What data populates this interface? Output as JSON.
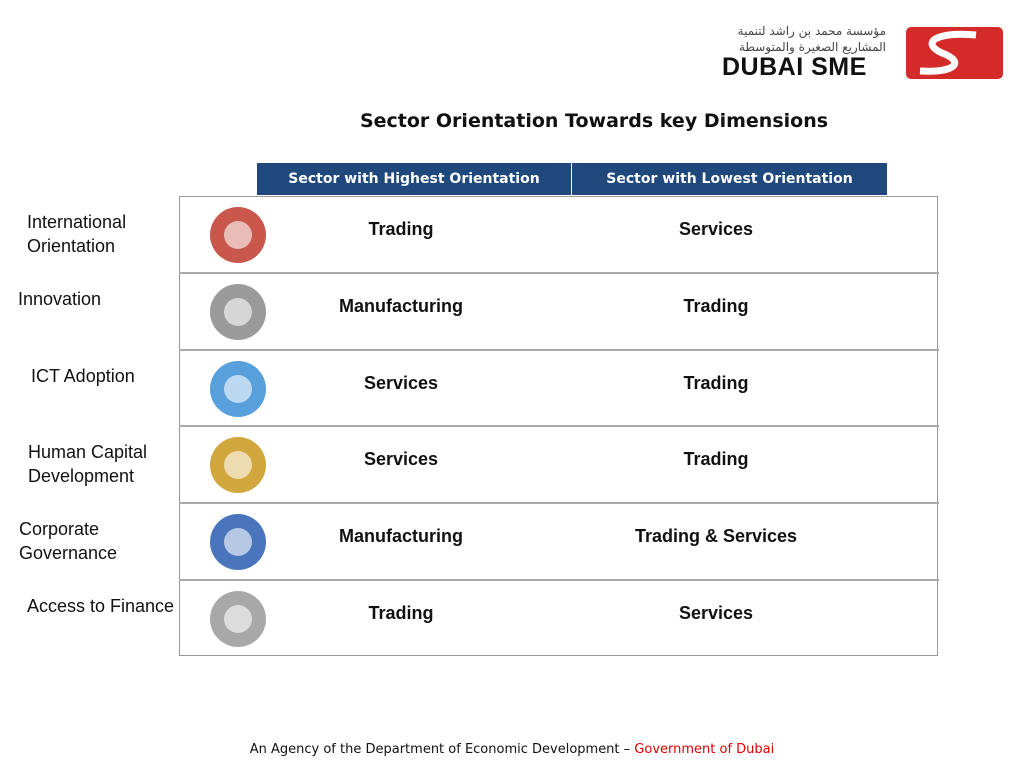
{
  "header": {
    "logo_arabic_line1": "مؤسسة محمد بن راشد لتنمية",
    "logo_arabic_line2": "المشاريع الصغيرة والمتوسطة",
    "logo_text": "DUBAI SME"
  },
  "title": "Sector Orientation Towards key Dimensions",
  "table": {
    "columns": [
      "Sector with Highest Orientation",
      "Sector with Lowest Orientation"
    ],
    "rows": [
      {
        "dimension": "International Orientation",
        "highest": "Trading",
        "lowest": "Services"
      },
      {
        "dimension": "Innovation",
        "highest": "Manufacturing",
        "lowest": "Trading"
      },
      {
        "dimension": "ICT Adoption",
        "highest": "Services",
        "lowest": "Trading"
      },
      {
        "dimension": "Human Capital Development",
        "highest": "Services",
        "lowest": "Trading"
      },
      {
        "dimension": "Corporate Governance",
        "highest": "Manufacturing",
        "lowest": "Trading & Services"
      },
      {
        "dimension": "Access to Finance",
        "highest": "Trading",
        "lowest": "Services"
      }
    ]
  },
  "footer": {
    "text": "An Agency of the Department of Economic Development –",
    "highlight": "Government of Dubai"
  }
}
